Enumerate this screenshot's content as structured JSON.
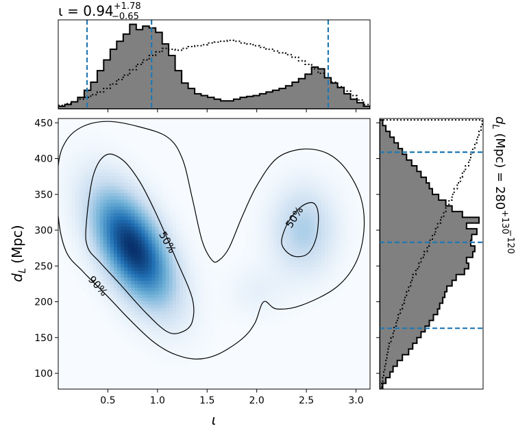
{
  "chart_data": {
    "type": "heatmap",
    "title_top": {
      "main": "ι = 0.94",
      "sup": "+1.78",
      "sub": "−0.65"
    },
    "title_right": {
      "main": "d",
      "main_sub": "L",
      "rest": " (Mpc) = 280",
      "sup": "+130",
      "sub": "−120"
    },
    "xlabel": "ι",
    "ylabel": {
      "main": "d",
      "sub": "L",
      "rest": " (Mpc)"
    },
    "xlim": [
      0.0,
      3.1416
    ],
    "ylim": [
      78,
      456
    ],
    "xticks": [
      "0.5",
      "1.0",
      "1.5",
      "2.0",
      "2.5",
      "3.0"
    ],
    "xtick_values": [
      0.5,
      1.0,
      1.5,
      2.0,
      2.5,
      3.0
    ],
    "yticks": [
      "100",
      "150",
      "200",
      "250",
      "300",
      "350",
      "400",
      "450"
    ],
    "ytick_values": [
      100,
      150,
      200,
      250,
      300,
      350,
      400,
      450
    ],
    "contour_labels": [
      "90%",
      "50%",
      "50%"
    ],
    "density_blobs": [
      {
        "cx": 0.75,
        "cy": 275,
        "sx": 0.28,
        "sy": 55,
        "rho": -0.55,
        "w": 1.0
      },
      {
        "cx": 2.47,
        "cy": 300,
        "sx": 0.22,
        "sy": 42,
        "rho": 0.0,
        "w": 0.32
      },
      {
        "cx": 2.0,
        "cy": 215,
        "sx": 0.2,
        "sy": 25,
        "rho": 0.0,
        "w": 0.08
      }
    ],
    "contour_90": [
      [
        0.0,
        390
      ],
      [
        0.08,
        425
      ],
      [
        0.25,
        445
      ],
      [
        0.5,
        452
      ],
      [
        0.8,
        445
      ],
      [
        1.1,
        430
      ],
      [
        1.25,
        400
      ],
      [
        1.35,
        345
      ],
      [
        1.45,
        285
      ],
      [
        1.55,
        258
      ],
      [
        1.62,
        258
      ],
      [
        1.72,
        275
      ],
      [
        1.85,
        318
      ],
      [
        2.0,
        362
      ],
      [
        2.2,
        400
      ],
      [
        2.45,
        413
      ],
      [
        2.7,
        408
      ],
      [
        2.9,
        385
      ],
      [
        3.05,
        345
      ],
      [
        3.08,
        300
      ],
      [
        3.0,
        255
      ],
      [
        2.8,
        220
      ],
      [
        2.45,
        195
      ],
      [
        2.2,
        190
      ],
      [
        2.07,
        200
      ],
      [
        1.98,
        170
      ],
      [
        1.85,
        148
      ],
      [
        1.6,
        126
      ],
      [
        1.38,
        120
      ],
      [
        1.15,
        128
      ],
      [
        0.95,
        145
      ],
      [
        0.72,
        175
      ],
      [
        0.48,
        210
      ],
      [
        0.25,
        242
      ],
      [
        0.08,
        270
      ],
      [
        0.0,
        320
      ]
    ],
    "contour_50_left": [
      [
        0.28,
        305
      ],
      [
        0.35,
        375
      ],
      [
        0.48,
        405
      ],
      [
        0.65,
        398
      ],
      [
        0.82,
        368
      ],
      [
        0.98,
        325
      ],
      [
        1.18,
        262
      ],
      [
        1.35,
        205
      ],
      [
        1.35,
        172
      ],
      [
        1.25,
        158
      ],
      [
        1.1,
        158
      ],
      [
        0.88,
        185
      ],
      [
        0.62,
        225
      ],
      [
        0.42,
        255
      ],
      [
        0.3,
        275
      ]
    ],
    "contour_50_right": [
      [
        2.25,
        285
      ],
      [
        2.32,
        312
      ],
      [
        2.45,
        333
      ],
      [
        2.57,
        338
      ],
      [
        2.62,
        322
      ],
      [
        2.6,
        290
      ],
      [
        2.52,
        268
      ],
      [
        2.4,
        263
      ],
      [
        2.3,
        270
      ]
    ],
    "contour_label_positions": [
      {
        "text": "90%",
        "x": 0.4,
        "y": 222,
        "angle": 48
      },
      {
        "text": "50%",
        "x": 1.1,
        "y": 283,
        "angle": 60
      },
      {
        "text": "50%",
        "x": 2.38,
        "y": 318,
        "angle": -57
      }
    ],
    "top_hist": {
      "bin_edges": [
        0.0,
        0.0655,
        0.131,
        0.1964,
        0.2618,
        0.3273,
        0.3927,
        0.4581,
        0.5236,
        0.589,
        0.6545,
        0.7199,
        0.7854,
        0.8508,
        0.9163,
        0.9817,
        1.0472,
        1.1126,
        1.1781,
        1.2435,
        1.309,
        1.3744,
        1.4399,
        1.5053,
        1.5708,
        1.6362,
        1.7017,
        1.7671,
        1.8326,
        1.898,
        1.9635,
        2.0289,
        2.0944,
        2.1598,
        2.2253,
        2.2907,
        2.3562,
        2.4216,
        2.4871,
        2.5525,
        2.618,
        2.6834,
        2.7489,
        2.8143,
        2.8798,
        2.9452,
        3.0107,
        3.0761,
        3.1416
      ],
      "counts": [
        3,
        5,
        8,
        13,
        21,
        30,
        43,
        55,
        67,
        76,
        84,
        95,
        89,
        93,
        91,
        86,
        73,
        60,
        43,
        29,
        23,
        17,
        15,
        13,
        11,
        9,
        9,
        11,
        13,
        14,
        15,
        17,
        19,
        21,
        23,
        26,
        30,
        34,
        39,
        47,
        45,
        35,
        29,
        24,
        17,
        11,
        7,
        3
      ],
      "prior_counts": [
        4,
        6,
        8,
        11,
        13,
        16,
        19,
        23,
        28,
        33,
        38,
        44,
        50,
        55,
        60,
        64,
        68,
        67,
        66,
        68,
        70,
        71,
        72,
        74,
        75,
        76,
        77,
        76,
        74,
        73,
        71,
        69,
        67,
        65,
        63,
        61,
        58,
        54,
        50,
        45,
        40,
        35,
        30,
        25,
        20,
        15,
        10,
        5
      ],
      "ymax": 100,
      "lines": [
        0.29,
        0.94,
        2.72
      ]
    },
    "right_hist": {
      "bin_edges": [
        78,
        86,
        94,
        102,
        110,
        118,
        126,
        134,
        142,
        150,
        158,
        166,
        174,
        182,
        190,
        198,
        206,
        214,
        222,
        230,
        238,
        246,
        254,
        262,
        270,
        278,
        286,
        294,
        302,
        310,
        318,
        326,
        334,
        342,
        350,
        358,
        366,
        374,
        382,
        390,
        398,
        406,
        414,
        422,
        430,
        438,
        446,
        454
      ],
      "counts": [
        3,
        6,
        10,
        13,
        17,
        22,
        28,
        32,
        36,
        40,
        44,
        48,
        52,
        56,
        58,
        61,
        63,
        65,
        70,
        74,
        82,
        86,
        84,
        90,
        92,
        88,
        89,
        94,
        84,
        96,
        80,
        70,
        64,
        57,
        51,
        48,
        45,
        40,
        36,
        31,
        26,
        22,
        18,
        14,
        10,
        6,
        3
      ],
      "prior_counts": [
        2,
        3,
        4,
        5,
        6,
        7,
        8,
        9,
        11,
        13,
        14,
        16,
        18,
        20,
        22,
        24,
        26,
        28,
        30,
        32,
        35,
        38,
        40,
        43,
        46,
        48,
        51,
        54,
        56,
        59,
        62,
        64,
        67,
        70,
        72,
        75,
        78,
        80,
        83,
        86,
        88,
        90,
        92,
        94,
        96,
        98,
        99
      ],
      "xmax": 100,
      "lines": [
        163,
        283,
        409
      ]
    }
  }
}
